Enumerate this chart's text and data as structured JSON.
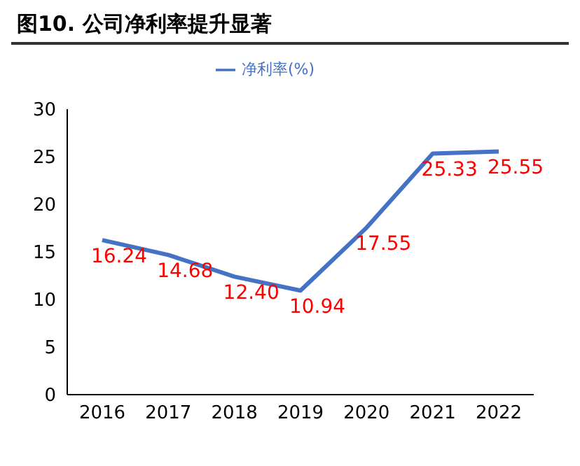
{
  "chart_data": {
    "type": "line",
    "title": "图10. 公司净利率提升显著",
    "categories": [
      "2016",
      "2017",
      "2018",
      "2019",
      "2020",
      "2021",
      "2022"
    ],
    "series": [
      {
        "name": "净利率(%)",
        "color": "#4472c4",
        "values": [
          16.24,
          14.68,
          12.4,
          10.94,
          17.55,
          25.33,
          25.55
        ],
        "value_labels": [
          "16.24",
          "14.68",
          "12.40",
          "10.94",
          "17.55",
          "25.33",
          "25.55"
        ]
      }
    ],
    "ylim": [
      0,
      30
    ],
    "yticks": [
      0,
      5,
      10,
      15,
      20,
      25,
      30
    ],
    "grid": false,
    "legend": "top",
    "marker": "none"
  }
}
